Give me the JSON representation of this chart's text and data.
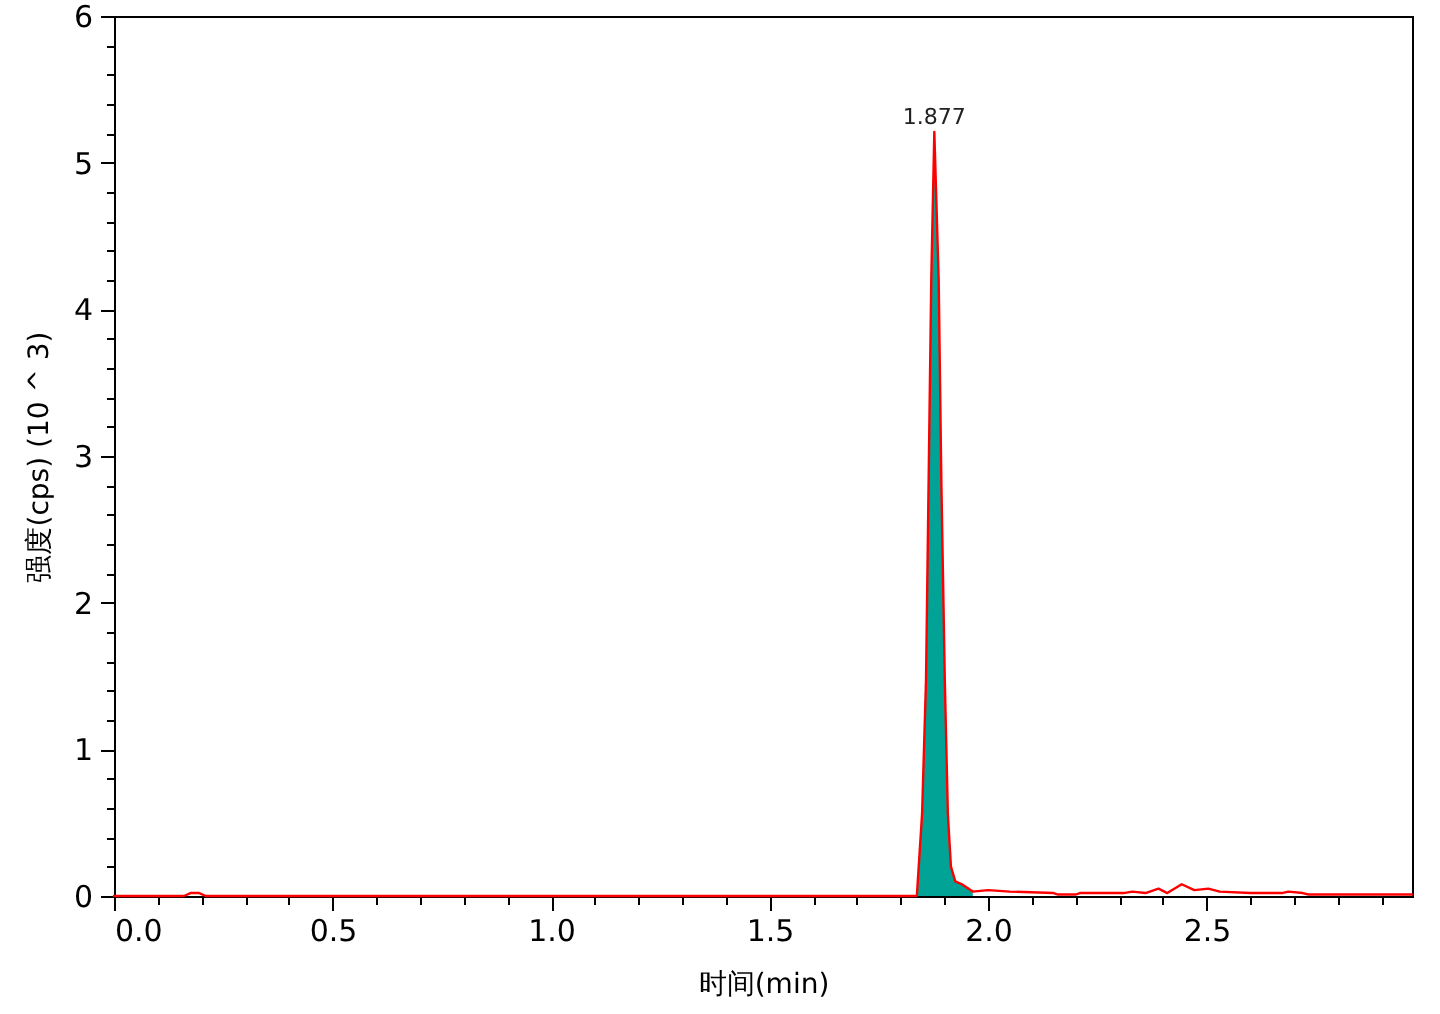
{
  "chart_data": {
    "type": "line",
    "xlabel": "时间(min)",
    "ylabel": "强度(cps) (10 ^ 3)",
    "xlim": [
      0,
      2.97
    ],
    "ylim": [
      0,
      6
    ],
    "xticks": [
      {
        "value": 0,
        "label": "0.0"
      },
      {
        "value": 0.1,
        "label": null
      },
      {
        "value": 0.2,
        "label": null
      },
      {
        "value": 0.3,
        "label": null
      },
      {
        "value": 0.4,
        "label": null
      },
      0.5,
      {
        "value": 0.6,
        "label": null
      },
      {
        "value": 0.7,
        "label": null
      },
      {
        "value": 0.8,
        "label": null
      },
      {
        "value": 0.9,
        "label": null
      },
      {
        "value": 1,
        "label": "1.0"
      },
      {
        "value": 1.1,
        "label": null
      },
      {
        "value": 1.2,
        "label": null
      },
      {
        "value": 1.3,
        "label": null
      },
      {
        "value": 1.4,
        "label": null
      },
      1.5,
      {
        "value": 1.6,
        "label": null
      },
      {
        "value": 1.7,
        "label": null
      },
      {
        "value": 1.8,
        "label": null
      },
      {
        "value": 1.9,
        "label": null
      },
      {
        "value": 2,
        "label": "2.0"
      },
      {
        "value": 2.1,
        "label": null
      },
      {
        "value": 2.2,
        "label": null
      },
      {
        "value": 2.3,
        "label": null
      },
      {
        "value": 2.4,
        "label": null
      },
      2.5,
      {
        "value": 2.6,
        "label": null
      },
      {
        "value": 2.7,
        "label": null
      },
      {
        "value": 2.8,
        "label": null
      },
      {
        "value": 2.9,
        "label": null
      }
    ],
    "yticks": [
      0,
      {
        "value": 0.2,
        "label": null
      },
      {
        "value": 0.4,
        "label": null
      },
      {
        "value": 0.6,
        "label": null
      },
      {
        "value": 0.8,
        "label": null
      },
      1,
      {
        "value": 1.2,
        "label": null
      },
      {
        "value": 1.4,
        "label": null
      },
      {
        "value": 1.6,
        "label": null
      },
      {
        "value": 1.8,
        "label": null
      },
      2,
      {
        "value": 2.2,
        "label": null
      },
      {
        "value": 2.4,
        "label": null
      },
      {
        "value": 2.6,
        "label": null
      },
      {
        "value": 2.8,
        "label": null
      },
      3,
      {
        "value": 3.2,
        "label": null
      },
      {
        "value": 3.4,
        "label": null
      },
      {
        "value": 3.6,
        "label": null
      },
      {
        "value": 3.8,
        "label": null
      },
      4,
      {
        "value": 4.2,
        "label": null
      },
      {
        "value": 4.4,
        "label": null
      },
      {
        "value": 4.6,
        "label": null
      },
      {
        "value": 4.8,
        "label": null
      },
      5,
      {
        "value": 5.2,
        "label": null
      },
      {
        "value": 5.4,
        "label": null
      },
      {
        "value": 5.6,
        "label": null
      },
      {
        "value": 5.8,
        "label": null
      },
      6
    ],
    "grid": false,
    "annotations": [
      {
        "text": "1.877",
        "x": 1.877,
        "y": 5.21
      }
    ],
    "series": [
      {
        "type": "area",
        "color": "#00a396",
        "x": [
          1.837,
          1.849,
          1.858,
          1.864,
          1.87,
          1.877,
          1.887,
          1.893,
          1.901,
          1.908,
          1.915,
          1.925,
          1.94,
          1.965
        ],
        "values": [
          0,
          0.56,
          1.47,
          2.84,
          4.2,
          5.21,
          4.2,
          2.84,
          1.47,
          0.56,
          0.2,
          0.1,
          0.08,
          0.03
        ]
      },
      {
        "type": "line",
        "color": "#ff0000",
        "x": [
          0,
          0.16,
          0.175,
          0.195,
          0.21,
          1.83,
          1.837,
          1.849,
          1.858,
          1.864,
          1.87,
          1.877,
          1.887,
          1.893,
          1.901,
          1.908,
          1.915,
          1.925,
          1.94,
          1.965,
          2.0,
          2.05,
          2.15,
          2.16,
          2.2,
          2.21,
          2.31,
          2.33,
          2.36,
          2.39,
          2.41,
          2.443,
          2.472,
          2.504,
          2.53,
          2.6,
          2.672,
          2.687,
          2.72,
          2.733,
          2.97
        ],
        "values": [
          0,
          0,
          0.02,
          0.02,
          0,
          0,
          0,
          0.56,
          1.47,
          2.84,
          4.2,
          5.21,
          4.2,
          2.84,
          1.47,
          0.56,
          0.2,
          0.1,
          0.08,
          0.03,
          0.04,
          0.03,
          0.02,
          0.01,
          0.01,
          0.02,
          0.02,
          0.03,
          0.02,
          0.05,
          0.02,
          0.08,
          0.04,
          0.05,
          0.03,
          0.02,
          0.02,
          0.03,
          0.02,
          0.01,
          0.01
        ]
      }
    ]
  }
}
